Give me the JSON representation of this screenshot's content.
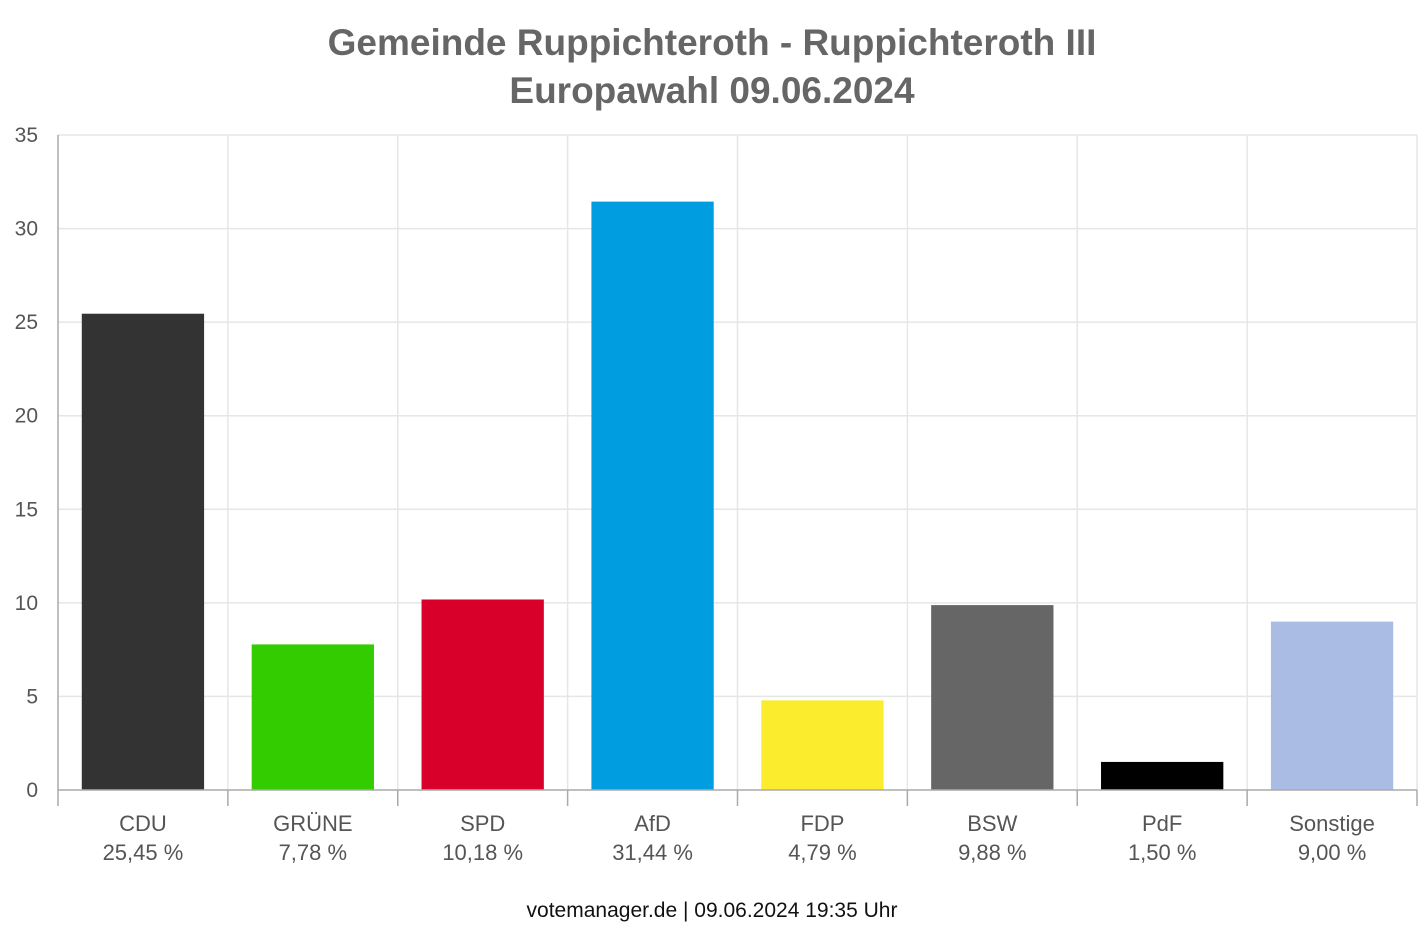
{
  "title": {
    "line1": "Gemeinde Ruppichteroth - Ruppichteroth III",
    "line2": "Europawahl 09.06.2024"
  },
  "footer": "votemanager.de | 09.06.2024 19:35 Uhr",
  "chart_data": {
    "type": "bar",
    "title": "Gemeinde Ruppichteroth - Ruppichteroth III\nEuropawahl 09.06.2024",
    "xlabel": "",
    "ylabel": "",
    "ylim": [
      0,
      35
    ],
    "yticks": [
      0,
      5,
      10,
      15,
      20,
      25,
      30,
      35
    ],
    "grid": true,
    "categories": [
      "CDU",
      "GRÜNE",
      "SPD",
      "AfD",
      "FDP",
      "BSW",
      "PdF",
      "Sonstige"
    ],
    "values": [
      25.45,
      7.78,
      10.18,
      31.44,
      4.79,
      9.88,
      1.5,
      9.0
    ],
    "value_labels": [
      "25,45 %",
      "7,78 %",
      "10,18 %",
      "31,44 %",
      "4,79 %",
      "9,88 %",
      "1,50 %",
      "9,00 %"
    ],
    "colors": [
      "#333333",
      "#33cc00",
      "#d8002a",
      "#009ee0",
      "#fcec2e",
      "#666666",
      "#000000",
      "#aabce3"
    ]
  }
}
